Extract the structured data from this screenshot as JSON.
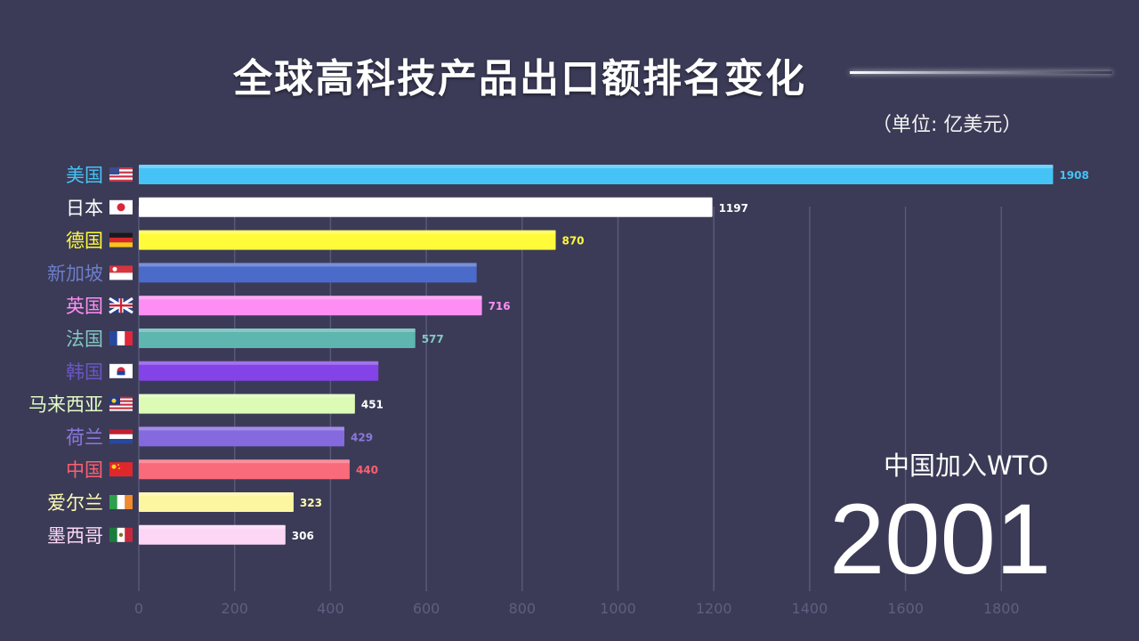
{
  "header": {
    "title": "全球高科技产品出口额排名变化",
    "unit": "（单位: 亿美元）"
  },
  "event_label": "中国加入WTO",
  "year": "2001",
  "chart_data": {
    "type": "bar",
    "orientation": "horizontal",
    "xlim": [
      0,
      1900
    ],
    "x_ticks": [
      0,
      200,
      400,
      600,
      800,
      1000,
      1200,
      1400,
      1600,
      1800
    ],
    "grid": "vertical",
    "categories": [
      "美国",
      "日本",
      "德国",
      "新加坡",
      "英国",
      "法国",
      "韩国",
      "马来西亚",
      "荷兰",
      "中国",
      "爱尔兰",
      "墨西哥"
    ],
    "values": [
      1908,
      1197,
      870,
      705,
      716,
      577,
      500,
      451,
      429,
      440,
      323,
      306
    ],
    "value_labels": [
      "1908",
      "1197",
      "870",
      "",
      "716",
      "577",
      "",
      "451",
      "429",
      "440",
      "323",
      "306"
    ],
    "flag_icons": [
      "us-flag",
      "japan-flag",
      "germany-flag",
      "singapore-flag",
      "uk-flag",
      "france-flag",
      "korea-flag",
      "malaysia-flag",
      "netherlands-flag",
      "china-flag",
      "ireland-flag",
      "mexico-flag"
    ],
    "colors": [
      "#45c3f7",
      "#ffffff",
      "#fffb3a",
      "#4b6bcb",
      "#ff8ef4",
      "#5fb5b0",
      "#8443e6",
      "#dcfbb4",
      "#8569df",
      "#f96a7a",
      "#fdf6a0",
      "#fdd6f6"
    ],
    "label_colors": [
      "#45c3f7",
      "#ffffff",
      "#fffb3a",
      "#6c7dc8",
      "#ff8ef4",
      "#83c8c4",
      "#6a56c4",
      "#e2fbc4",
      "#8b78dd",
      "#ff5f6f",
      "#fffbb0",
      "#fcd8f6"
    ],
    "value_label_colors": [
      "#45c3f7",
      "#ffffff",
      "#fffb3a",
      "#5a6ec0",
      "#ff8ef4",
      "#83c8c4",
      "#6a56c4",
      "#ffffff",
      "#8b78dd",
      "#ff5f6f",
      "#fffbb0",
      "#ffffff"
    ]
  }
}
